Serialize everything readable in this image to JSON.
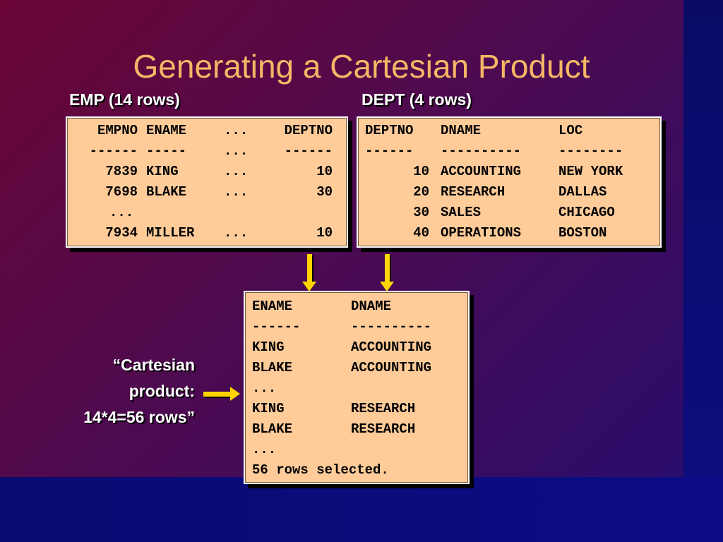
{
  "title": "Generating a Cartesian Product",
  "emp": {
    "label": "EMP (14 rows)",
    "headers": [
      "EMPNO",
      "ENAME",
      "...",
      "DEPTNO"
    ],
    "dashes": [
      "------",
      "-----",
      "...",
      "------"
    ],
    "rows": [
      [
        "7839",
        "KING",
        "...",
        "10"
      ],
      [
        "7698",
        "BLAKE",
        "...",
        "30"
      ],
      [
        "...",
        "",
        "",
        ""
      ],
      [
        "7934",
        "MILLER",
        "...",
        "10"
      ]
    ]
  },
  "dept": {
    "label": "DEPT (4 rows)",
    "headers": [
      "DEPTNO",
      "DNAME",
      "LOC"
    ],
    "dashes": [
      "------",
      "----------",
      "--------"
    ],
    "rows": [
      [
        "10",
        "ACCOUNTING",
        "NEW YORK"
      ],
      [
        "20",
        "RESEARCH",
        "DALLAS"
      ],
      [
        "30",
        "SALES",
        "CHICAGO"
      ],
      [
        "40",
        "OPERATIONS",
        "BOSTON"
      ]
    ]
  },
  "result": {
    "headers": [
      "ENAME",
      "DNAME"
    ],
    "dashes": [
      "------",
      "----------"
    ],
    "rows": [
      [
        "KING",
        "ACCOUNTING"
      ],
      [
        "BLAKE",
        "ACCOUNTING"
      ],
      [
        "...",
        ""
      ],
      [
        "KING",
        "RESEARCH"
      ],
      [
        "BLAKE",
        "RESEARCH"
      ],
      [
        "...",
        ""
      ]
    ],
    "footer": "56 rows selected."
  },
  "cartesian_note": {
    "line1": "“Cartesian",
    "line2": "product:",
    "line3": "14*4=56 rows”"
  },
  "colors": {
    "title": "#f5b766",
    "box_fill": "#ffcc99",
    "arrow": "#ffd400"
  }
}
